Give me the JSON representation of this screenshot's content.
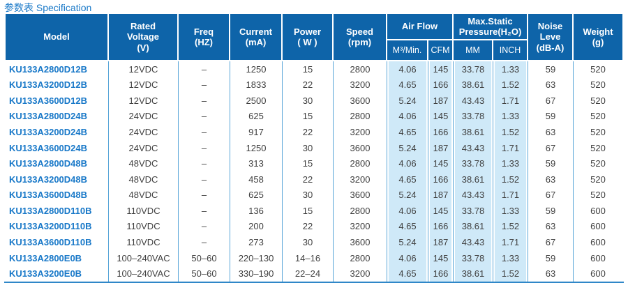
{
  "page": {
    "title": "参数表 Specification"
  },
  "colors": {
    "header_bg": "#0e64a9",
    "title_text": "#1a79c8",
    "model_text": "#1878c8",
    "highlight_bg": "#cfe9f8",
    "grid_line": "#58a5d8",
    "bottom_rule": "#2f87c8",
    "data_text": "#3f3f3f"
  },
  "table": {
    "headers": {
      "model": "Model",
      "rated_voltage": "Rated\nVoltage\n(V)",
      "freq": "Freq\n(HZ)",
      "current": "Current\n(mA)",
      "power": "Power\n( W )",
      "speed": "Speed\n(rpm)",
      "air_flow": "Air Flow",
      "air_flow_m3": "M³/Min.",
      "air_flow_cfm": "CFM",
      "max_static": "Max.Static\nPressure(H₂O)",
      "max_static_mm": "MM",
      "max_static_inch": "INCH",
      "noise": "Noise\nLeve\n(dB-A)",
      "weight": "Weight\n(g)"
    },
    "rows": [
      [
        "KU133A2800D12B",
        "12VDC",
        "–",
        "1250",
        "15",
        "2800",
        "4.06",
        "145",
        "33.78",
        "1.33",
        "59",
        "520"
      ],
      [
        "KU133A3200D12B",
        "12VDC",
        "–",
        "1833",
        "22",
        "3200",
        "4.65",
        "166",
        "38.61",
        "1.52",
        "63",
        "520"
      ],
      [
        "KU133A3600D12B",
        "12VDC",
        "–",
        "2500",
        "30",
        "3600",
        "5.24",
        "187",
        "43.43",
        "1.71",
        "67",
        "520"
      ],
      [
        "KU133A2800D24B",
        "24VDC",
        "–",
        "625",
        "15",
        "2800",
        "4.06",
        "145",
        "33.78",
        "1.33",
        "59",
        "520"
      ],
      [
        "KU133A3200D24B",
        "24VDC",
        "–",
        "917",
        "22",
        "3200",
        "4.65",
        "166",
        "38.61",
        "1.52",
        "63",
        "520"
      ],
      [
        "KU133A3600D24B",
        "24VDC",
        "–",
        "1250",
        "30",
        "3600",
        "5.24",
        "187",
        "43.43",
        "1.71",
        "67",
        "520"
      ],
      [
        "KU133A2800D48B",
        "48VDC",
        "–",
        "313",
        "15",
        "2800",
        "4.06",
        "145",
        "33.78",
        "1.33",
        "59",
        "520"
      ],
      [
        "KU133A3200D48B",
        "48VDC",
        "–",
        "458",
        "22",
        "3200",
        "4.65",
        "166",
        "38.61",
        "1.52",
        "63",
        "520"
      ],
      [
        "KU133A3600D48B",
        "48VDC",
        "–",
        "625",
        "30",
        "3600",
        "5.24",
        "187",
        "43.43",
        "1.71",
        "67",
        "520"
      ],
      [
        "KU133A2800D110B",
        "110VDC",
        "–",
        "136",
        "15",
        "2800",
        "4.06",
        "145",
        "33.78",
        "1.33",
        "59",
        "600"
      ],
      [
        "KU133A3200D110B",
        "110VDC",
        "–",
        "200",
        "22",
        "3200",
        "4.65",
        "166",
        "38.61",
        "1.52",
        "63",
        "600"
      ],
      [
        "KU133A3600D110B",
        "110VDC",
        "–",
        "273",
        "30",
        "3600",
        "5.24",
        "187",
        "43.43",
        "1.71",
        "67",
        "600"
      ],
      [
        "KU133A2800E0B",
        "100–240VAC",
        "50–60",
        "220–130",
        "14–16",
        "2800",
        "4.06",
        "145",
        "33.78",
        "1.33",
        "59",
        "600"
      ],
      [
        "KU133A3200E0B",
        "100–240VAC",
        "50–60",
        "330–190",
        "22–24",
        "3200",
        "4.65",
        "166",
        "38.61",
        "1.52",
        "63",
        "600"
      ]
    ]
  }
}
